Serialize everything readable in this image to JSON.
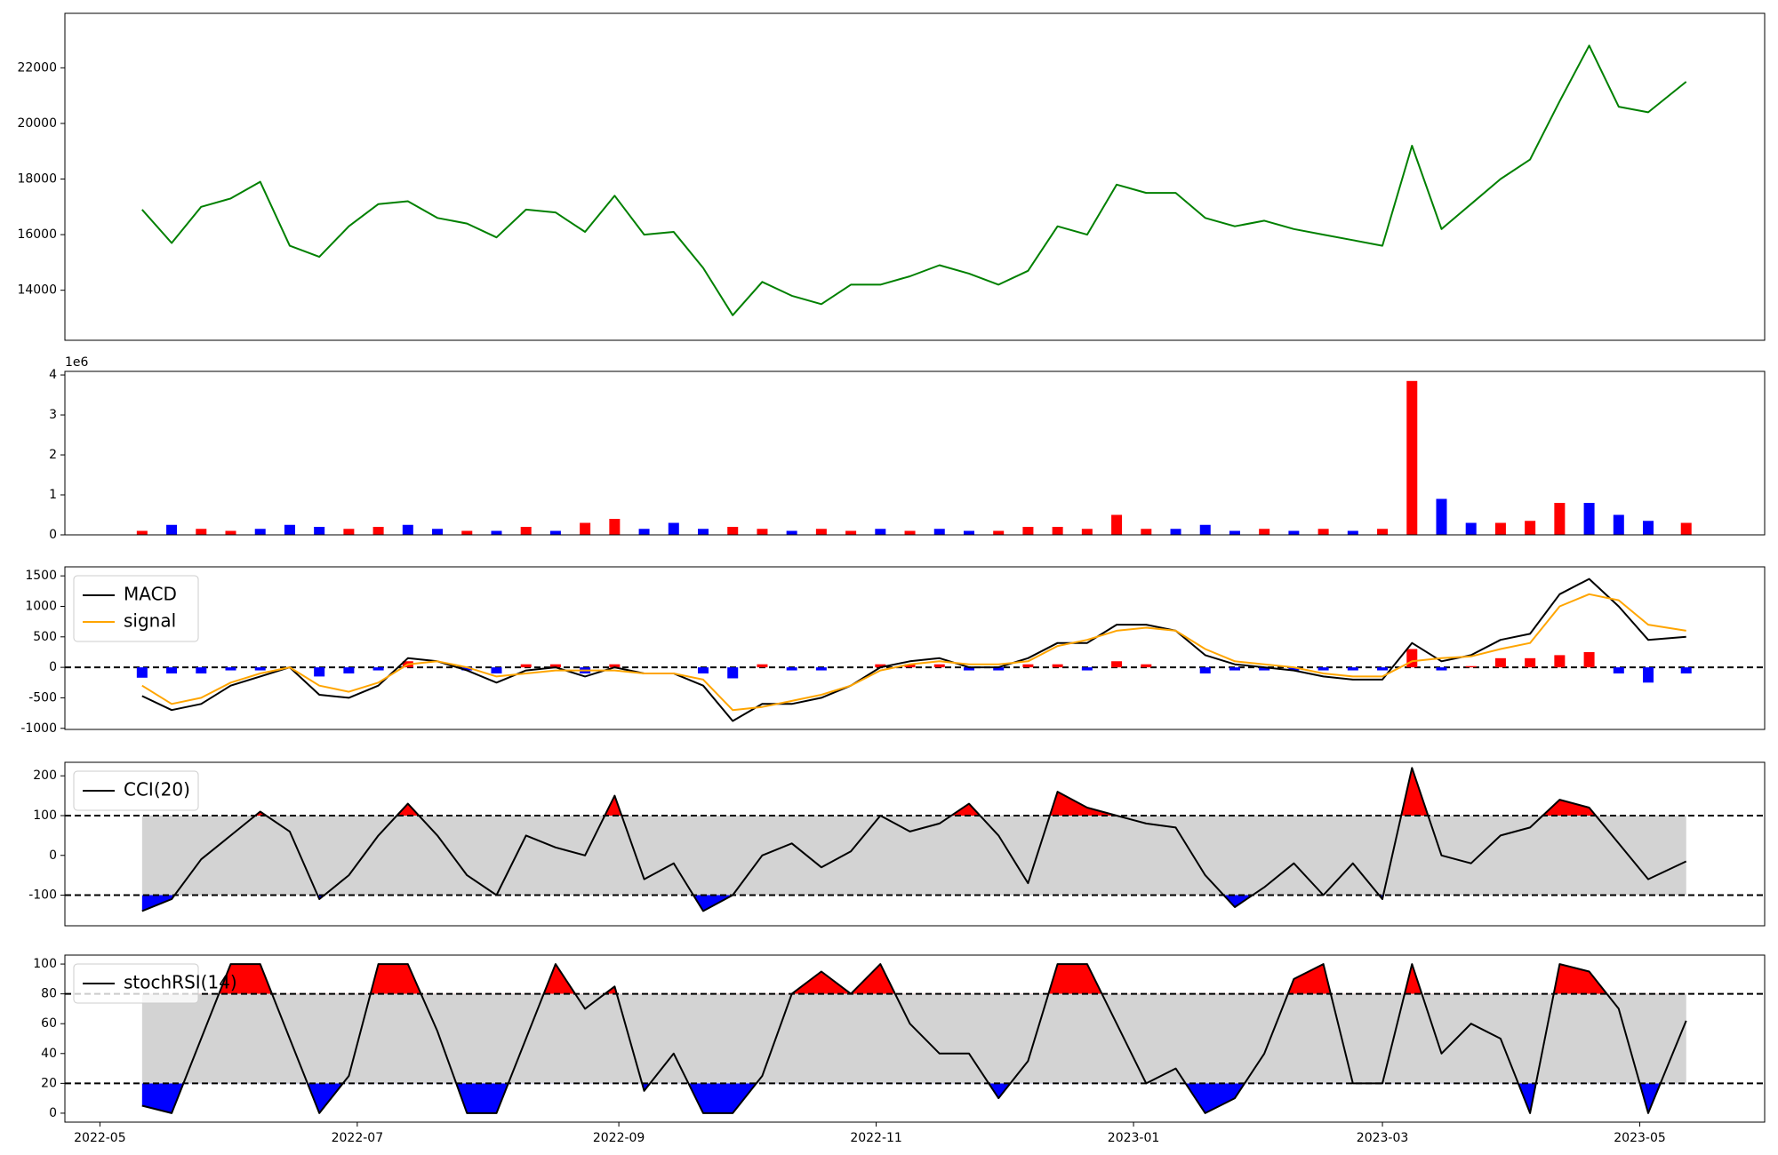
{
  "chart_data": [
    {
      "type": "line",
      "xlim": [
        -8.3,
        394.6
      ],
      "ylim": [
        12200,
        23960
      ],
      "yticks": [
        14000,
        16000,
        18000,
        20000,
        22000
      ],
      "x": [
        10,
        17,
        24,
        31,
        38,
        45,
        52,
        59,
        66,
        73,
        80,
        87,
        94,
        101,
        108,
        115,
        122,
        129,
        136,
        143,
        150,
        157,
        164,
        171,
        178,
        185,
        192,
        199,
        206,
        213,
        220,
        227,
        234,
        241,
        248,
        255,
        262,
        269,
        276,
        283,
        290,
        297,
        304,
        311,
        318,
        325,
        332,
        339,
        346,
        353,
        360,
        367,
        376
      ],
      "series": [
        {
          "color": "#008000",
          "values": [
            16900,
            15700,
            17000,
            17300,
            17900,
            15600,
            15200,
            16300,
            17100,
            17200,
            16600,
            16400,
            15900,
            16900,
            16800,
            16100,
            17400,
            16000,
            16100,
            14800,
            13100,
            14300,
            13800,
            13500,
            14200,
            14200,
            14500,
            14900,
            14600,
            14200,
            14700,
            16300,
            16000,
            17800,
            17500,
            17500,
            16600,
            16300,
            16500,
            16200,
            16000,
            15800,
            15600,
            19200,
            16200,
            17100,
            18000,
            18700,
            20800,
            22800,
            20600,
            20400,
            21500
          ]
        }
      ]
    },
    {
      "type": "bar",
      "offset_label": "1e6",
      "xlim": [
        -8.3,
        394.6
      ],
      "ylim": [
        0,
        4.09
      ],
      "yticks": [
        0,
        1,
        2,
        3,
        4
      ],
      "x": [
        10,
        17,
        24,
        31,
        38,
        45,
        52,
        59,
        66,
        73,
        80,
        87,
        94,
        101,
        108,
        115,
        122,
        129,
        136,
        143,
        150,
        157,
        164,
        171,
        178,
        185,
        192,
        199,
        206,
        213,
        220,
        227,
        234,
        241,
        248,
        255,
        262,
        269,
        276,
        283,
        290,
        297,
        304,
        311,
        318,
        325,
        332,
        339,
        346,
        353,
        360,
        367,
        376
      ],
      "values": [
        0.1,
        0.25,
        0.15,
        0.1,
        0.15,
        0.25,
        0.2,
        0.15,
        0.2,
        0.25,
        0.15,
        0.1,
        0.1,
        0.2,
        0.1,
        0.3,
        0.4,
        0.15,
        0.3,
        0.15,
        0.2,
        0.15,
        0.1,
        0.15,
        0.1,
        0.15,
        0.1,
        0.15,
        0.1,
        0.1,
        0.2,
        0.2,
        0.15,
        0.5,
        0.15,
        0.15,
        0.25,
        0.1,
        0.15,
        0.1,
        0.15,
        0.1,
        0.15,
        3.85,
        0.9,
        0.3,
        0.3,
        0.35,
        0.8,
        0.8,
        0.5,
        0.35,
        0.3
      ],
      "colors": [
        "red",
        "blue",
        "red",
        "red",
        "blue",
        "blue",
        "blue",
        "red",
        "red",
        "blue",
        "blue",
        "red",
        "blue",
        "red",
        "blue",
        "red",
        "red",
        "blue",
        "blue",
        "blue",
        "red",
        "red",
        "blue",
        "red",
        "red",
        "blue",
        "red",
        "blue",
        "blue",
        "red",
        "red",
        "red",
        "red",
        "red",
        "red",
        "blue",
        "blue",
        "blue",
        "red",
        "blue",
        "red",
        "blue",
        "red",
        "red",
        "blue",
        "blue",
        "red",
        "red",
        "red",
        "blue",
        "blue",
        "blue",
        "red"
      ]
    },
    {
      "type": "macd",
      "xlim": [
        -8.3,
        394.6
      ],
      "ylim": [
        -1018,
        1648
      ],
      "yticks": [
        -1000,
        -500,
        0,
        500,
        1000,
        1500
      ],
      "legend": "upper left",
      "x": [
        10,
        17,
        24,
        31,
        38,
        45,
        52,
        59,
        66,
        73,
        80,
        87,
        94,
        101,
        108,
        115,
        122,
        129,
        136,
        143,
        150,
        157,
        164,
        171,
        178,
        185,
        192,
        199,
        206,
        213,
        220,
        227,
        234,
        241,
        248,
        255,
        262,
        269,
        276,
        283,
        290,
        297,
        304,
        311,
        318,
        325,
        332,
        339,
        346,
        353,
        360,
        367,
        376
      ],
      "series": [
        {
          "name": "MACD",
          "color": "black",
          "values": [
            -470,
            -700,
            -600,
            -300,
            -150,
            0,
            -450,
            -500,
            -300,
            150,
            100,
            -50,
            -250,
            -50,
            0,
            -150,
            0,
            -100,
            -100,
            -300,
            -880,
            -600,
            -600,
            -500,
            -300,
            0,
            100,
            150,
            0,
            0,
            150,
            400,
            400,
            700,
            700,
            600,
            200,
            50,
            0,
            -50,
            -150,
            -200,
            -200,
            400,
            100,
            200,
            450,
            550,
            1200,
            1450,
            1000,
            450,
            500
          ]
        },
        {
          "name": "signal",
          "color": "orange",
          "values": [
            -300,
            -600,
            -500,
            -250,
            -100,
            0,
            -300,
            -400,
            -250,
            50,
            100,
            0,
            -150,
            -100,
            -50,
            -50,
            -50,
            -100,
            -100,
            -200,
            -700,
            -650,
            -550,
            -450,
            -300,
            -50,
            50,
            100,
            50,
            50,
            100,
            350,
            450,
            600,
            650,
            600,
            300,
            100,
            50,
            0,
            -100,
            -150,
            -150,
            100,
            150,
            180,
            300,
            400,
            1000,
            1200,
            1100,
            700,
            600
          ]
        }
      ],
      "histogram_values": [
        -170,
        -100,
        -100,
        -50,
        -50,
        0,
        -150,
        -100,
        -50,
        100,
        0,
        -50,
        -100,
        50,
        50,
        -100,
        50,
        0,
        0,
        -100,
        -180,
        50,
        -50,
        -50,
        0,
        50,
        50,
        50,
        -50,
        -50,
        50,
        50,
        -50,
        100,
        50,
        0,
        -100,
        -50,
        -50,
        -50,
        -50,
        -50,
        -50,
        300,
        -50,
        20,
        150,
        150,
        200,
        250,
        -100,
        -250,
        -100
      ],
      "histogram_colors": [
        "red",
        "blue"
      ]
    },
    {
      "type": "oscillator",
      "xlim": [
        -8.3,
        394.6
      ],
      "ylim": [
        -177,
        234
      ],
      "yticks": [
        -100,
        0,
        100,
        200
      ],
      "bands": [
        -100,
        100
      ],
      "legend": "upper left",
      "band_color": "lightgray",
      "fill_colors": [
        "blue",
        "red"
      ],
      "x": [
        10,
        17,
        24,
        31,
        38,
        45,
        52,
        59,
        66,
        73,
        80,
        87,
        94,
        101,
        108,
        115,
        122,
        129,
        136,
        143,
        150,
        157,
        164,
        171,
        178,
        185,
        192,
        199,
        206,
        213,
        220,
        227,
        234,
        241,
        248,
        255,
        262,
        269,
        276,
        283,
        290,
        297,
        304,
        311,
        318,
        325,
        332,
        339,
        346,
        353,
        360,
        367,
        376
      ],
      "series": [
        {
          "name": "CCI(20)",
          "color": "black",
          "values": [
            -140,
            -110,
            -10,
            50,
            110,
            60,
            -110,
            -50,
            50,
            130,
            50,
            -50,
            -100,
            50,
            20,
            0,
            150,
            -60,
            -20,
            -140,
            -100,
            0,
            30,
            -30,
            10,
            100,
            60,
            80,
            130,
            50,
            -70,
            160,
            120,
            100,
            80,
            70,
            -50,
            -130,
            -80,
            -20,
            -100,
            -20,
            -110,
            220,
            0,
            -20,
            50,
            70,
            140,
            120,
            30,
            -60,
            -15
          ]
        }
      ]
    },
    {
      "type": "oscillator",
      "xlim": [
        -8.3,
        394.6
      ],
      "ylim": [
        -6,
        106
      ],
      "yticks": [
        0,
        20,
        40,
        60,
        80,
        100
      ],
      "bands": [
        20,
        80
      ],
      "legend": "upper left",
      "band_color": "lightgray",
      "fill_colors": [
        "blue",
        "red"
      ],
      "xticks": [
        {
          "value": 0,
          "label": "2022-05"
        },
        {
          "value": 61,
          "label": "2022-07"
        },
        {
          "value": 123,
          "label": "2022-09"
        },
        {
          "value": 184,
          "label": "2022-11"
        },
        {
          "value": 245,
          "label": "2023-01"
        },
        {
          "value": 304,
          "label": "2023-03"
        },
        {
          "value": 365,
          "label": "2023-05"
        }
      ],
      "x": [
        10,
        17,
        24,
        31,
        38,
        45,
        52,
        59,
        66,
        73,
        80,
        87,
        94,
        101,
        108,
        115,
        122,
        129,
        136,
        143,
        150,
        157,
        164,
        171,
        178,
        185,
        192,
        199,
        206,
        213,
        220,
        227,
        234,
        241,
        248,
        255,
        262,
        269,
        276,
        283,
        290,
        297,
        304,
        311,
        318,
        325,
        332,
        339,
        346,
        353,
        360,
        367,
        376
      ],
      "series": [
        {
          "name": "stochRSI(14)",
          "color": "black",
          "values": [
            5,
            0,
            50,
            100,
            100,
            50,
            0,
            25,
            100,
            100,
            55,
            0,
            0,
            50,
            100,
            70,
            85,
            15,
            40,
            0,
            0,
            25,
            80,
            95,
            80,
            100,
            60,
            40,
            40,
            10,
            35,
            100,
            100,
            60,
            20,
            30,
            0,
            10,
            40,
            90,
            100,
            20,
            20,
            100,
            40,
            60,
            50,
            0,
            100,
            95,
            70,
            0,
            62
          ]
        }
      ]
    }
  ]
}
